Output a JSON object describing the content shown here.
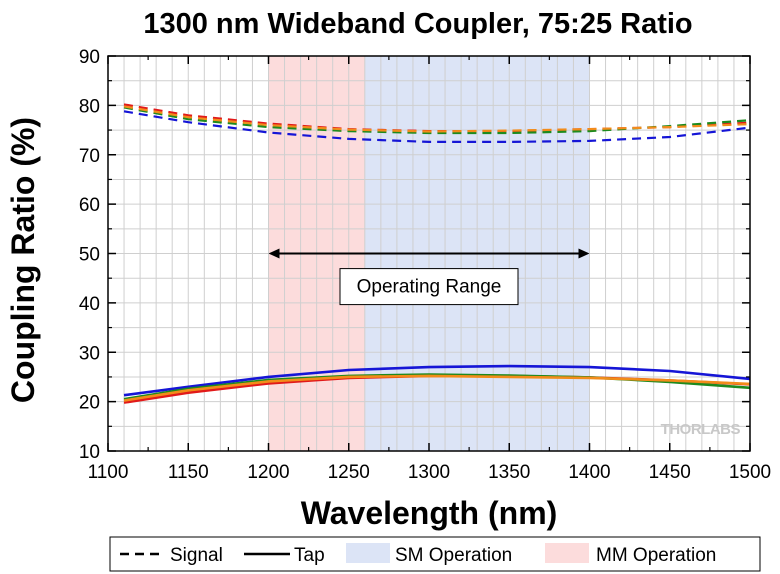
{
  "chart_data": {
    "type": "line",
    "title": "1300 nm Wideband Coupler, 75:25 Ratio",
    "xlabel": "Wavelength (nm)",
    "ylabel": "Coupling Ratio (%)",
    "xlim": [
      1100,
      1500
    ],
    "ylim": [
      10,
      90
    ],
    "xticks": [
      1100,
      1150,
      1200,
      1250,
      1300,
      1350,
      1400,
      1450,
      1500
    ],
    "yticks": [
      10,
      20,
      30,
      40,
      50,
      60,
      70,
      80,
      90
    ],
    "grid": true,
    "legend_position": "bottom",
    "regions": [
      {
        "name": "MM Operation",
        "x": [
          1200,
          1260
        ],
        "color": "#fcdcdc"
      },
      {
        "name": "SM Operation",
        "x": [
          1260,
          1400
        ],
        "color": "#dce4f6"
      }
    ],
    "annotation": {
      "text": "Operating Range",
      "x_range": [
        1200,
        1400
      ],
      "arrow_y": 50,
      "label_y": 43.5
    },
    "legend": [
      {
        "label": "Signal",
        "style": "dashed"
      },
      {
        "label": "Tap",
        "style": "solid"
      },
      {
        "label": "SM Operation",
        "style": "patch",
        "color": "#dce4f6"
      },
      {
        "label": "MM Operation",
        "style": "patch",
        "color": "#fcdcdc"
      }
    ],
    "series": [
      {
        "kind": "signal",
        "color": "#1515d6",
        "x": [
          1110,
          1150,
          1200,
          1250,
          1300,
          1350,
          1400,
          1450,
          1500
        ],
        "y": [
          78.8,
          76.6,
          74.5,
          73.2,
          72.6,
          72.6,
          72.8,
          73.6,
          75.5
        ]
      },
      {
        "kind": "signal",
        "color": "#e11a1a",
        "x": [
          1110,
          1150,
          1200,
          1250,
          1300,
          1350,
          1400,
          1450,
          1500
        ],
        "y": [
          80.2,
          78.0,
          76.3,
          75.2,
          74.8,
          74.8,
          75.2,
          75.6,
          76.5
        ]
      },
      {
        "kind": "signal",
        "color": "#1e8a1e",
        "x": [
          1110,
          1150,
          1200,
          1250,
          1300,
          1350,
          1400,
          1450,
          1500
        ],
        "y": [
          79.6,
          77.2,
          75.6,
          74.8,
          74.4,
          74.4,
          74.8,
          75.8,
          77.0
        ]
      },
      {
        "kind": "signal",
        "color": "#f28c1a",
        "x": [
          1110,
          1150,
          1200,
          1250,
          1300,
          1350,
          1400,
          1450,
          1500
        ],
        "y": [
          79.8,
          77.6,
          76.0,
          75.1,
          74.7,
          74.9,
          75.2,
          75.6,
          76.2
        ]
      },
      {
        "kind": "tap",
        "color": "#1515d6",
        "x": [
          1110,
          1150,
          1200,
          1250,
          1300,
          1350,
          1400,
          1450,
          1500
        ],
        "y": [
          21.3,
          23.0,
          25.0,
          26.4,
          27.0,
          27.2,
          27.0,
          26.2,
          24.6
        ]
      },
      {
        "kind": "tap",
        "color": "#e11a1a",
        "x": [
          1110,
          1150,
          1200,
          1250,
          1300,
          1350,
          1400,
          1450,
          1500
        ],
        "y": [
          19.8,
          21.8,
          23.7,
          24.8,
          25.2,
          25.2,
          24.9,
          24.3,
          23.5
        ]
      },
      {
        "kind": "tap",
        "color": "#1e8a1e",
        "x": [
          1110,
          1150,
          1200,
          1250,
          1300,
          1350,
          1400,
          1450,
          1500
        ],
        "y": [
          20.5,
          22.6,
          24.4,
          25.2,
          25.5,
          25.3,
          24.9,
          24.0,
          22.8
        ]
      },
      {
        "kind": "tap",
        "color": "#f28c1a",
        "x": [
          1110,
          1150,
          1200,
          1250,
          1300,
          1350,
          1400,
          1450,
          1500
        ],
        "y": [
          20.2,
          22.3,
          24.1,
          25.0,
          25.2,
          25.0,
          24.8,
          24.3,
          23.6
        ]
      }
    ]
  },
  "watermark": "THORLABS"
}
